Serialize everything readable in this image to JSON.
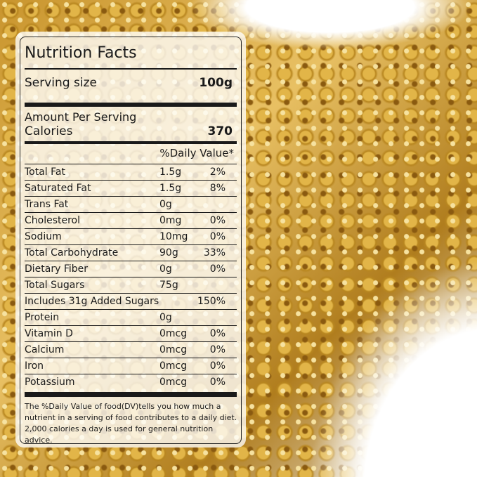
{
  "title": "Nutrition Facts",
  "serving": {
    "label": "Serving size",
    "value": "100g"
  },
  "amount_per_serving": "Amount Per Serving",
  "calories": {
    "label": "Calories",
    "value": "370"
  },
  "daily_value_header": "%Daily Value*",
  "nutrients": [
    {
      "name": "Total Fat",
      "amount": "1.5g",
      "dv": "2%"
    },
    {
      "name": "Saturated Fat",
      "amount": "1.5g",
      "dv": "8%"
    },
    {
      "name": "Trans Fat",
      "amount": "0g",
      "dv": ""
    },
    {
      "name": "Cholesterol",
      "amount": "0mg",
      "dv": "0%"
    },
    {
      "name": "Sodium",
      "amount": "10mg",
      "dv": "0%"
    },
    {
      "name": "Total Carbohydrate",
      "amount": "90g",
      "dv": "33%"
    },
    {
      "name": "Dietary Fiber",
      "amount": "0g",
      "dv": "0%"
    },
    {
      "name": "Total Sugars",
      "amount": "75g",
      "dv": ""
    },
    {
      "name": "Includes 31g Added Sugars",
      "amount": "",
      "dv": "150%"
    },
    {
      "name": "Protein",
      "amount": "0g",
      "dv": ""
    },
    {
      "name": "Vitamin D",
      "amount": "0mcg",
      "dv": "0%"
    },
    {
      "name": "Calcium",
      "amount": "0mcg",
      "dv": "0%"
    },
    {
      "name": "Iron",
      "amount": "0mcg",
      "dv": "0%"
    },
    {
      "name": "Potassium",
      "amount": "0mcg",
      "dv": "0%"
    }
  ],
  "footnote": "The %Daily Value of food(DV)tells you how much a nutrient in a serving of food contributes to a daily diet. 2,000 calories a day is used for general nutrition advice."
}
